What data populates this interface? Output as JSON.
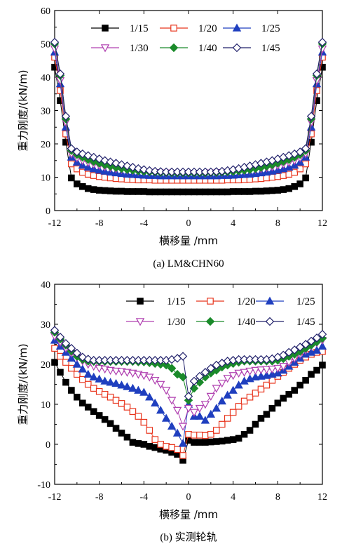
{
  "chart_data": [
    {
      "type": "line",
      "caption": "(a) LM&CHN60",
      "xlabel": "横移量 /mm",
      "ylabel": "重力刚度/(kN/m)",
      "xlim": [
        -12,
        12
      ],
      "ylim": [
        0,
        60
      ],
      "xticks": [
        "-12",
        "-8",
        "-4",
        "0",
        "4",
        "8",
        "12"
      ],
      "yticks": [
        "0",
        "10",
        "20",
        "30",
        "40",
        "50",
        "60"
      ],
      "legend": "top",
      "x": [
        -12,
        -11.5,
        -11,
        -10.5,
        -10,
        -9.5,
        -9,
        -8.5,
        -8,
        -7.5,
        -7,
        -6.5,
        -6,
        -5.5,
        -5,
        -4.5,
        -4,
        -3.5,
        -3,
        -2.5,
        -2,
        -1.5,
        -1,
        -0.5,
        0,
        0.5,
        1,
        1.5,
        2,
        2.5,
        3,
        3.5,
        4,
        4.5,
        5,
        5.5,
        6,
        6.5,
        7,
        7.5,
        8,
        8.5,
        9,
        9.5,
        10,
        10.5,
        11,
        11.5,
        12
      ],
      "series": [
        {
          "name": "1/15",
          "marker": "square-filled",
          "color": "#000000",
          "values": [
            43,
            33,
            20.5,
            9.8,
            8,
            7.2,
            6.6,
            6.3,
            6.1,
            6,
            5.9,
            5.8,
            5.8,
            5.7,
            5.7,
            5.7,
            5.7,
            5.6,
            5.6,
            5.6,
            5.6,
            5.6,
            5.6,
            5.6,
            5.6,
            5.6,
            5.6,
            5.6,
            5.6,
            5.6,
            5.6,
            5.6,
            5.7,
            5.7,
            5.7,
            5.7,
            5.8,
            5.8,
            5.9,
            6,
            6.1,
            6.3,
            6.6,
            7.2,
            8,
            9.8,
            20.5,
            33,
            43
          ]
        },
        {
          "name": "1/20",
          "marker": "square-open",
          "color": "#e8341c",
          "values": [
            46,
            36,
            23,
            14,
            12.5,
            11.5,
            10.9,
            10.5,
            10.2,
            10,
            9.8,
            9.6,
            9.5,
            9.4,
            9.3,
            9.2,
            9.2,
            9.2,
            9.1,
            9.1,
            9.1,
            9.1,
            9.1,
            9.1,
            9.1,
            9.1,
            9.1,
            9.1,
            9.1,
            9.1,
            9.1,
            9.2,
            9.2,
            9.2,
            9.3,
            9.4,
            9.5,
            9.6,
            9.8,
            10,
            10.2,
            10.5,
            10.9,
            11.5,
            12.5,
            14,
            23,
            36,
            46
          ]
        },
        {
          "name": "1/25",
          "marker": "triangle-filled",
          "color": "#1f3fbf",
          "values": [
            47.5,
            38,
            25,
            16,
            14.5,
            13.6,
            13,
            12.5,
            12.1,
            11.8,
            11.5,
            11.3,
            11.1,
            10.9,
            10.8,
            10.7,
            10.6,
            10.5,
            10.5,
            10.4,
            10.4,
            10.4,
            10.4,
            10.4,
            10.4,
            10.4,
            10.4,
            10.4,
            10.4,
            10.4,
            10.5,
            10.5,
            10.6,
            10.7,
            10.8,
            10.9,
            11.1,
            11.3,
            11.5,
            11.8,
            12.1,
            12.5,
            13,
            13.6,
            14.5,
            16,
            25,
            38,
            47.5
          ]
        },
        {
          "name": "1/30",
          "marker": "triangle-down-open",
          "color": "#b040b0",
          "values": [
            48.5,
            39,
            26.5,
            17,
            15.8,
            15,
            14.4,
            13.9,
            13.5,
            13.1,
            12.8,
            12.5,
            12.3,
            12.1,
            11.9,
            11.7,
            11.6,
            11.5,
            11.4,
            11.3,
            11.3,
            11.2,
            11.2,
            11.2,
            11.2,
            11.2,
            11.2,
            11.2,
            11.3,
            11.3,
            11.4,
            11.5,
            11.6,
            11.7,
            11.9,
            12.1,
            12.3,
            12.5,
            12.8,
            13.1,
            13.5,
            13.9,
            14.4,
            15,
            15.8,
            17,
            26.5,
            39,
            48.5
          ]
        },
        {
          "name": "1/40",
          "marker": "diamond-filled",
          "color": "#1a8a2a",
          "values": [
            50,
            40.5,
            27.5,
            18,
            16.8,
            16,
            15.3,
            14.7,
            14.2,
            13.7,
            13.3,
            12.9,
            12.6,
            12.3,
            12.1,
            11.9,
            11.7,
            11.6,
            11.5,
            11.4,
            11.4,
            11.3,
            11.3,
            11.3,
            11.3,
            11.3,
            11.3,
            11.3,
            11.4,
            11.4,
            11.5,
            11.6,
            11.7,
            11.9,
            12.1,
            12.3,
            12.6,
            12.9,
            13.3,
            13.7,
            14.2,
            14.7,
            15.3,
            16,
            16.8,
            18,
            27.5,
            40.5,
            50
          ]
        },
        {
          "name": "1/45",
          "marker": "diamond-open",
          "color": "#20206a",
          "values": [
            50.5,
            41,
            28.3,
            18.6,
            17.6,
            17,
            16.5,
            16,
            15.5,
            15,
            14.6,
            14.2,
            13.8,
            13.4,
            13,
            12.6,
            12.3,
            12,
            11.8,
            11.7,
            11.6,
            11.6,
            11.6,
            11.6,
            11.6,
            11.6,
            11.6,
            11.6,
            11.6,
            11.7,
            11.8,
            12,
            12.3,
            12.6,
            13,
            13.4,
            13.8,
            14.2,
            14.6,
            15,
            15.5,
            16,
            16.5,
            17,
            17.6,
            18.6,
            28.3,
            41,
            50.5
          ]
        }
      ]
    },
    {
      "type": "line",
      "caption": "(b) 实测轮轨",
      "xlabel": "横移量 /mm",
      "ylabel": "重力刚度/(kN/m)",
      "xlim": [
        -12,
        12
      ],
      "ylim": [
        -10,
        40
      ],
      "xticks": [
        "-12",
        "-8",
        "-4",
        "0",
        "4",
        "8",
        "12"
      ],
      "yticks": [
        "-10",
        "0",
        "10",
        "20",
        "30",
        "40"
      ],
      "legend": "top",
      "x": [
        -12,
        -11.5,
        -11,
        -10.5,
        -10,
        -9.5,
        -9,
        -8.5,
        -8,
        -7.5,
        -7,
        -6.5,
        -6,
        -5.5,
        -5,
        -4.5,
        -4,
        -3.5,
        -3,
        -2.5,
        -2,
        -1.5,
        -1,
        -0.5,
        0,
        0.5,
        1,
        1.5,
        2,
        2.5,
        3,
        3.5,
        4,
        4.5,
        5,
        5.5,
        6,
        6.5,
        7,
        7.5,
        8,
        8.5,
        9,
        9.5,
        10,
        10.5,
        11,
        11.5,
        12
      ],
      "series": [
        {
          "name": "1/15",
          "marker": "square-filled",
          "color": "#000000",
          "values": [
            20.5,
            18,
            15.5,
            13.5,
            11.8,
            10.3,
            9.3,
            8.2,
            7.2,
            6.2,
            5.2,
            4,
            2.8,
            1.8,
            0.5,
            0.2,
            0,
            -0.5,
            -0.8,
            -1.2,
            -1.5,
            -2,
            -2.5,
            -4,
            1,
            0.5,
            0.5,
            0.5,
            0.6,
            0.7,
            0.8,
            1,
            1.2,
            1.5,
            2.5,
            3.5,
            5,
            6.5,
            7.5,
            9,
            10.3,
            11.5,
            12.5,
            13.5,
            14.8,
            16,
            17.5,
            18.5,
            19.8
          ]
        },
        {
          "name": "1/20",
          "marker": "square-open",
          "color": "#e8341c",
          "values": [
            24,
            22,
            20.5,
            19,
            17.5,
            16.2,
            15,
            14,
            13.2,
            12.5,
            11.8,
            11,
            10.2,
            9.3,
            8.2,
            7,
            5.5,
            3.5,
            1.2,
            0,
            -0.5,
            -0.8,
            -1.3,
            -2.8,
            2.5,
            2.3,
            2.3,
            2.2,
            2.5,
            3.5,
            5,
            6.5,
            8,
            9.5,
            10.8,
            11.8,
            12.8,
            13.8,
            14.8,
            16,
            17,
            18,
            19,
            20,
            21,
            21.8,
            22.5,
            23,
            23.2
          ]
        },
        {
          "name": "1/25",
          "marker": "triangle-filled",
          "color": "#1f3fbf",
          "values": [
            26,
            24.5,
            23,
            21.5,
            20,
            18.8,
            17.5,
            16.8,
            16.3,
            15.8,
            15.5,
            15.2,
            14.8,
            14.4,
            14,
            13.5,
            13,
            11.8,
            10.3,
            8.5,
            6.5,
            4.5,
            2.8,
            0.2,
            10,
            7,
            7,
            6,
            7.5,
            9,
            10.8,
            12.3,
            13.5,
            14.8,
            15.8,
            16.4,
            16.8,
            17,
            17.2,
            17.5,
            17.8,
            18.5,
            19.5,
            20.5,
            21.5,
            22.5,
            23,
            23.5,
            24.5
          ]
        },
        {
          "name": "1/30",
          "marker": "triangle-down-open",
          "color": "#b040b0",
          "values": [
            27,
            25.5,
            24,
            22.8,
            21.7,
            20.8,
            20,
            19.5,
            19,
            18.8,
            18.5,
            18.3,
            18.2,
            18,
            17.8,
            17.5,
            17.2,
            16.8,
            16,
            15,
            13.5,
            11,
            8.5,
            4.5,
            9,
            8,
            9,
            10,
            12,
            14,
            15.3,
            16.5,
            17.2,
            17.8,
            18,
            18.3,
            18.5,
            18.6,
            18.7,
            18.8,
            19,
            19.5,
            20.5,
            21.5,
            22.5,
            23.5,
            24.5,
            25.3,
            26
          ]
        },
        {
          "name": "1/40",
          "marker": "diamond-filled",
          "color": "#1a8a2a",
          "values": [
            28,
            26.3,
            24.8,
            23.3,
            22,
            21.2,
            20.8,
            20.7,
            20.7,
            20.7,
            20.7,
            20.7,
            20.7,
            20.7,
            20.7,
            20.6,
            20.6,
            20.4,
            20.2,
            20,
            19.8,
            19,
            17.5,
            16.8,
            11,
            14,
            15.5,
            16.8,
            17.8,
            18.5,
            19.3,
            19.8,
            20.2,
            20.5,
            20.8,
            20.8,
            20.8,
            20.8,
            20.8,
            20.8,
            21,
            21.4,
            22,
            22.5,
            23.2,
            24,
            24.8,
            25.6,
            26.5
          ]
        },
        {
          "name": "1/45",
          "marker": "diamond-open",
          "color": "#20206a",
          "values": [
            28.5,
            26.8,
            25.2,
            24,
            22.8,
            21.8,
            21.3,
            21,
            21,
            21,
            21,
            21,
            21,
            21,
            21,
            21,
            21,
            21,
            21,
            21,
            21,
            21.2,
            21.5,
            22,
            12,
            15.8,
            17,
            18,
            19,
            19.8,
            20.3,
            20.8,
            21,
            21.2,
            21.2,
            21.2,
            21.2,
            21.2,
            21.2,
            21.4,
            21.8,
            22.3,
            23,
            23.6,
            24.3,
            25,
            25.8,
            26.6,
            27.5
          ]
        }
      ]
    }
  ]
}
